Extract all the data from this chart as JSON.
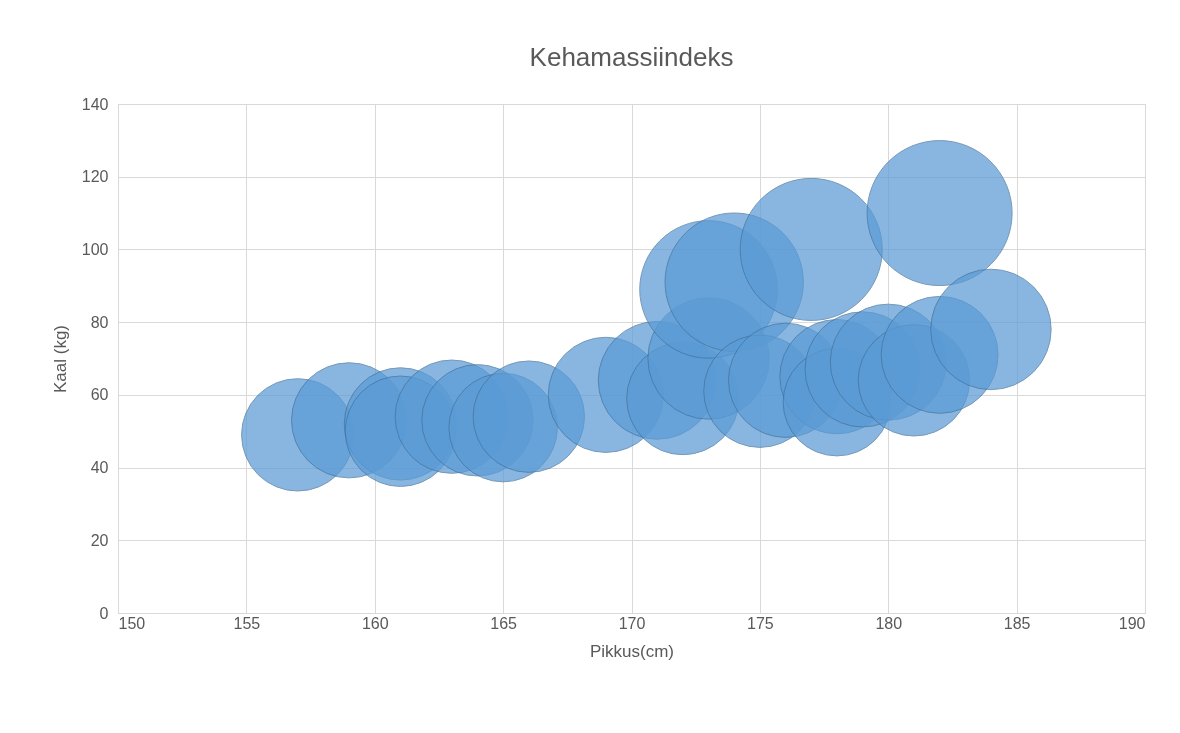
{
  "chart_data": {
    "type": "bubble",
    "title": "Kehamassiindeks",
    "xlabel": "Pikkus(cm)",
    "ylabel": "Kaal (kg)",
    "x": [
      157,
      159,
      161,
      161,
      163,
      164,
      165,
      166,
      169,
      171,
      172,
      173,
      173,
      174,
      175,
      176,
      177,
      178,
      178,
      179,
      180,
      181,
      182,
      182,
      184
    ],
    "series": [
      {
        "color": "#5b9bd5",
        "values": [
          49,
          53,
          52,
          50,
          54,
          53,
          51,
          54,
          60,
          64,
          59,
          70,
          89,
          91,
          61,
          64,
          100,
          65,
          58,
          67,
          69,
          64,
          71,
          110,
          78
        ],
        "sizes": [
          0.6,
          0.63,
          0.6,
          0.58,
          0.61,
          0.59,
          0.56,
          0.59,
          0.63,
          0.66,
          0.6,
          0.7,
          0.9,
          0.91,
          0.6,
          0.62,
          0.96,
          0.62,
          0.55,
          0.63,
          0.64,
          0.59,
          0.65,
          1,
          0.69
        ]
      }
    ],
    "xlim": [
      150,
      190
    ],
    "xticks": [
      150,
      155,
      160,
      165,
      170,
      175,
      180,
      185,
      190
    ],
    "ylim": [
      0,
      140
    ],
    "yticks": [
      0,
      20,
      40,
      60,
      80,
      100,
      120,
      140
    ],
    "grid": true
  }
}
